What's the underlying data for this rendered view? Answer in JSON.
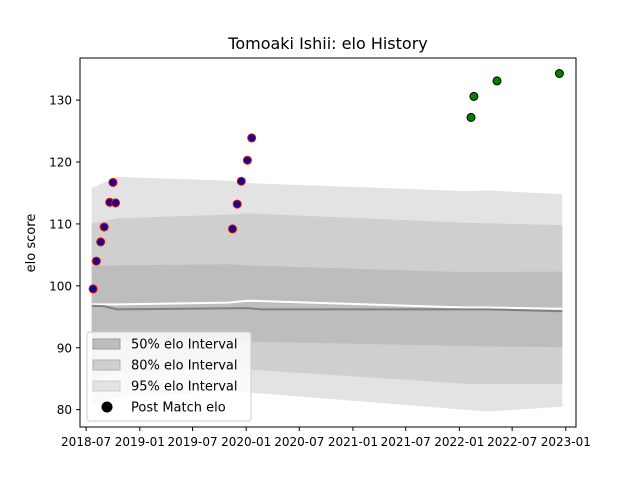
{
  "chart_data": {
    "type": "scatter",
    "title": "Tomoaki Ishii: elo History",
    "xlabel": "",
    "ylabel": "elo score",
    "xlim": [
      "2018-06-10",
      "2023-02-05"
    ],
    "ylim": [
      77.2,
      136.8
    ],
    "x_ticks": [
      "2018-07",
      "2019-01",
      "2019-07",
      "2020-01",
      "2020-07",
      "2021-01",
      "2021-07",
      "2022-01",
      "2022-07",
      "2023-01"
    ],
    "y_ticks": [
      80,
      90,
      100,
      110,
      120,
      130
    ],
    "legend_position": "lower-left",
    "legend": [
      {
        "label": "50% elo Interval"
      },
      {
        "label": "80% elo Interval"
      },
      {
        "label": "95% elo Interval"
      },
      {
        "label": "Post Match elo"
      }
    ],
    "colors": {
      "band95": "#e3e3e3",
      "band80": "#cfcfcf",
      "band50": "#bdbdbd",
      "median_line": "#ffffff",
      "lower_line": "#808080",
      "loss_fill": "#0b0b8c",
      "loss_edge": "#ff0000",
      "win_fill": "#008000",
      "win_edge": "#000000"
    },
    "intervals": [
      {
        "date": "2018-07-20",
        "p2_5": 81.0,
        "p10": 84.8,
        "p25": 90.9,
        "p50": 97.0,
        "p75": 103.2,
        "p90": 110.0,
        "p97_5": 115.8
      },
      {
        "date": "2018-10-15",
        "p2_5": 82.0,
        "p10": 86.0,
        "p25": 91.0,
        "p50": 97.0,
        "p75": 103.3,
        "p90": 110.9,
        "p97_5": 117.6
      },
      {
        "date": "2019-11-01",
        "p2_5": 83.0,
        "p10": 86.8,
        "p25": 91.0,
        "p50": 97.3,
        "p75": 103.5,
        "p90": 111.5,
        "p97_5": 117.0
      },
      {
        "date": "2020-01-05",
        "p2_5": 82.8,
        "p10": 86.5,
        "p25": 91.0,
        "p50": 97.6,
        "p75": 103.3,
        "p90": 111.7,
        "p97_5": 116.6
      },
      {
        "date": "2022-01-20",
        "p2_5": 80.0,
        "p10": 84.2,
        "p25": 90.3,
        "p50": 96.5,
        "p75": 102.2,
        "p90": 110.2,
        "p97_5": 115.3
      },
      {
        "date": "2022-04-10",
        "p2_5": 79.7,
        "p10": 84.2,
        "p25": 90.2,
        "p50": 96.5,
        "p75": 102.2,
        "p90": 110.1,
        "p97_5": 115.4
      },
      {
        "date": "2022-12-20",
        "p2_5": 80.5,
        "p10": 84.2,
        "p25": 90.1,
        "p50": 96.3,
        "p75": 102.3,
        "p90": 109.8,
        "p97_5": 114.8
      }
    ],
    "lower_line": [
      {
        "date": "2018-07-20",
        "value": 96.8
      },
      {
        "date": "2018-09-01",
        "value": 96.7
      },
      {
        "date": "2018-10-15",
        "value": 96.2
      },
      {
        "date": "2020-01-05",
        "value": 96.4
      },
      {
        "date": "2020-02-20",
        "value": 96.2
      },
      {
        "date": "2022-04-10",
        "value": 96.2
      },
      {
        "date": "2022-12-20",
        "value": 95.9
      }
    ],
    "series": [
      {
        "result": "loss",
        "points": [
          {
            "date": "2018-07-25",
            "elo": 99.5
          },
          {
            "date": "2018-08-05",
            "elo": 104.0
          },
          {
            "date": "2018-08-20",
            "elo": 107.1
          },
          {
            "date": "2018-09-01",
            "elo": 109.5
          },
          {
            "date": "2018-09-20",
            "elo": 113.5
          },
          {
            "date": "2018-10-01",
            "elo": 116.7
          },
          {
            "date": "2018-10-10",
            "elo": 113.4
          },
          {
            "date": "2019-11-15",
            "elo": 109.2
          },
          {
            "date": "2019-12-01",
            "elo": 113.2
          },
          {
            "date": "2019-12-15",
            "elo": 116.9
          },
          {
            "date": "2020-01-05",
            "elo": 120.3
          },
          {
            "date": "2020-01-20",
            "elo": 123.9
          }
        ]
      },
      {
        "result": "win",
        "points": [
          {
            "date": "2022-02-10",
            "elo": 127.2
          },
          {
            "date": "2022-02-20",
            "elo": 130.6
          },
          {
            "date": "2022-05-10",
            "elo": 133.1
          },
          {
            "date": "2022-12-10",
            "elo": 134.3
          }
        ]
      }
    ]
  }
}
